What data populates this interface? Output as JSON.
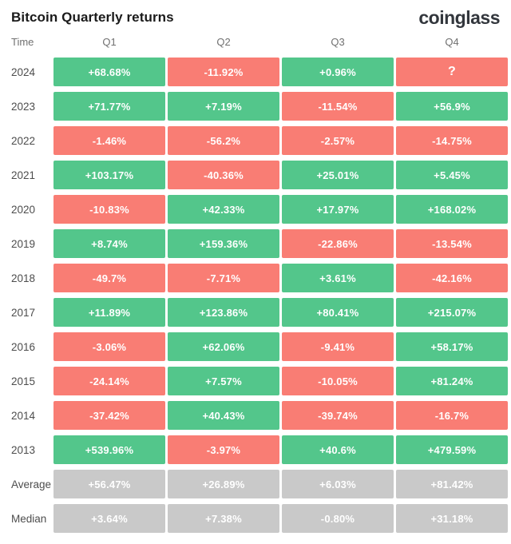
{
  "header": {
    "title": "Bitcoin Quarterly returns",
    "logo": "coinglass"
  },
  "columns": {
    "time": "Time",
    "q1": "Q1",
    "q2": "Q2",
    "q3": "Q3",
    "q4": "Q4"
  },
  "colors": {
    "green": "#53c68b",
    "red": "#f97d74",
    "gray": "#c9c9c9"
  },
  "chart_data": {
    "type": "heatmap",
    "title": "Bitcoin Quarterly returns",
    "row_header": "Time",
    "columns": [
      "Q1",
      "Q2",
      "Q3",
      "Q4"
    ],
    "rows": [
      {
        "label": "2024",
        "cells": [
          {
            "text": "+68.68%",
            "value": 68.68,
            "color": "green"
          },
          {
            "text": "-11.92%",
            "value": -11.92,
            "color": "red"
          },
          {
            "text": "+0.96%",
            "value": 0.96,
            "color": "green"
          },
          {
            "text": "?",
            "value": null,
            "color": "red"
          }
        ]
      },
      {
        "label": "2023",
        "cells": [
          {
            "text": "+71.77%",
            "value": 71.77,
            "color": "green"
          },
          {
            "text": "+7.19%",
            "value": 7.19,
            "color": "green"
          },
          {
            "text": "-11.54%",
            "value": -11.54,
            "color": "red"
          },
          {
            "text": "+56.9%",
            "value": 56.9,
            "color": "green"
          }
        ]
      },
      {
        "label": "2022",
        "cells": [
          {
            "text": "-1.46%",
            "value": -1.46,
            "color": "red"
          },
          {
            "text": "-56.2%",
            "value": -56.2,
            "color": "red"
          },
          {
            "text": "-2.57%",
            "value": -2.57,
            "color": "red"
          },
          {
            "text": "-14.75%",
            "value": -14.75,
            "color": "red"
          }
        ]
      },
      {
        "label": "2021",
        "cells": [
          {
            "text": "+103.17%",
            "value": 103.17,
            "color": "green"
          },
          {
            "text": "-40.36%",
            "value": -40.36,
            "color": "red"
          },
          {
            "text": "+25.01%",
            "value": 25.01,
            "color": "green"
          },
          {
            "text": "+5.45%",
            "value": 5.45,
            "color": "green"
          }
        ]
      },
      {
        "label": "2020",
        "cells": [
          {
            "text": "-10.83%",
            "value": -10.83,
            "color": "red"
          },
          {
            "text": "+42.33%",
            "value": 42.33,
            "color": "green"
          },
          {
            "text": "+17.97%",
            "value": 17.97,
            "color": "green"
          },
          {
            "text": "+168.02%",
            "value": 168.02,
            "color": "green"
          }
        ]
      },
      {
        "label": "2019",
        "cells": [
          {
            "text": "+8.74%",
            "value": 8.74,
            "color": "green"
          },
          {
            "text": "+159.36%",
            "value": 159.36,
            "color": "green"
          },
          {
            "text": "-22.86%",
            "value": -22.86,
            "color": "red"
          },
          {
            "text": "-13.54%",
            "value": -13.54,
            "color": "red"
          }
        ]
      },
      {
        "label": "2018",
        "cells": [
          {
            "text": "-49.7%",
            "value": -49.7,
            "color": "red"
          },
          {
            "text": "-7.71%",
            "value": -7.71,
            "color": "red"
          },
          {
            "text": "+3.61%",
            "value": 3.61,
            "color": "green"
          },
          {
            "text": "-42.16%",
            "value": -42.16,
            "color": "red"
          }
        ]
      },
      {
        "label": "2017",
        "cells": [
          {
            "text": "+11.89%",
            "value": 11.89,
            "color": "green"
          },
          {
            "text": "+123.86%",
            "value": 123.86,
            "color": "green"
          },
          {
            "text": "+80.41%",
            "value": 80.41,
            "color": "green"
          },
          {
            "text": "+215.07%",
            "value": 215.07,
            "color": "green"
          }
        ]
      },
      {
        "label": "2016",
        "cells": [
          {
            "text": "-3.06%",
            "value": -3.06,
            "color": "red"
          },
          {
            "text": "+62.06%",
            "value": 62.06,
            "color": "green"
          },
          {
            "text": "-9.41%",
            "value": -9.41,
            "color": "red"
          },
          {
            "text": "+58.17%",
            "value": 58.17,
            "color": "green"
          }
        ]
      },
      {
        "label": "2015",
        "cells": [
          {
            "text": "-24.14%",
            "value": -24.14,
            "color": "red"
          },
          {
            "text": "+7.57%",
            "value": 7.57,
            "color": "green"
          },
          {
            "text": "-10.05%",
            "value": -10.05,
            "color": "red"
          },
          {
            "text": "+81.24%",
            "value": 81.24,
            "color": "green"
          }
        ]
      },
      {
        "label": "2014",
        "cells": [
          {
            "text": "-37.42%",
            "value": -37.42,
            "color": "red"
          },
          {
            "text": "+40.43%",
            "value": 40.43,
            "color": "green"
          },
          {
            "text": "-39.74%",
            "value": -39.74,
            "color": "red"
          },
          {
            "text": "-16.7%",
            "value": -16.7,
            "color": "red"
          }
        ]
      },
      {
        "label": "2013",
        "cells": [
          {
            "text": "+539.96%",
            "value": 539.96,
            "color": "green"
          },
          {
            "text": "-3.97%",
            "value": -3.97,
            "color": "red"
          },
          {
            "text": "+40.6%",
            "value": 40.6,
            "color": "green"
          },
          {
            "text": "+479.59%",
            "value": 479.59,
            "color": "green"
          }
        ]
      },
      {
        "label": "Average",
        "cells": [
          {
            "text": "+56.47%",
            "value": 56.47,
            "color": "gray"
          },
          {
            "text": "+26.89%",
            "value": 26.89,
            "color": "gray"
          },
          {
            "text": "+6.03%",
            "value": 6.03,
            "color": "gray"
          },
          {
            "text": "+81.42%",
            "value": 81.42,
            "color": "gray"
          }
        ]
      },
      {
        "label": "Median",
        "cells": [
          {
            "text": "+3.64%",
            "value": 3.64,
            "color": "gray"
          },
          {
            "text": "+7.38%",
            "value": 7.38,
            "color": "gray"
          },
          {
            "text": "-0.80%",
            "value": -0.8,
            "color": "gray"
          },
          {
            "text": "+31.18%",
            "value": 31.18,
            "color": "gray"
          }
        ]
      }
    ]
  }
}
